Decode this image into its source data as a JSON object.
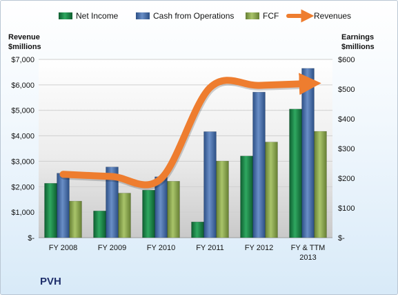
{
  "chart_data": {
    "type": "bar",
    "categories": [
      "FY 2008",
      "FY 2009",
      "FY 2010",
      "FY 2011",
      "FY 2012",
      "FY & TTM 2013"
    ],
    "series": [
      {
        "name": "Net Income",
        "axis": "right",
        "color": "#1e8a4a",
        "values": [
          183,
          90,
          160,
          53,
          275,
          433
        ]
      },
      {
        "name": "Cash from Operations",
        "axis": "right",
        "color": "#4a72ad",
        "values": [
          217,
          238,
          205,
          357,
          490,
          570
        ]
      },
      {
        "name": "FCF",
        "axis": "right",
        "color": "#8fae52",
        "values": [
          123,
          150,
          190,
          258,
          322,
          358
        ]
      },
      {
        "name": "Revenues",
        "axis": "left",
        "type": "line",
        "color": "#ee7d2f",
        "values": [
          2490,
          2400,
          2320,
          5890,
          5980,
          6050
        ]
      }
    ],
    "y_left": {
      "label_line1": "Revenue",
      "label_line2": "$millions",
      "range": [
        0,
        7000
      ],
      "ticks": [
        "$-",
        "$1,000",
        "$2,000",
        "$3,000",
        "$4,000",
        "$5,000",
        "$6,000",
        "$7,000"
      ]
    },
    "y_right": {
      "label_line1": "Earnings",
      "label_line2": "$millions",
      "range": [
        0,
        600
      ],
      "ticks": [
        "$-",
        "$100",
        "$200",
        "$300",
        "$400",
        "$500",
        "$600"
      ]
    },
    "legend_position": "top",
    "grid": true
  },
  "company": "PVH"
}
